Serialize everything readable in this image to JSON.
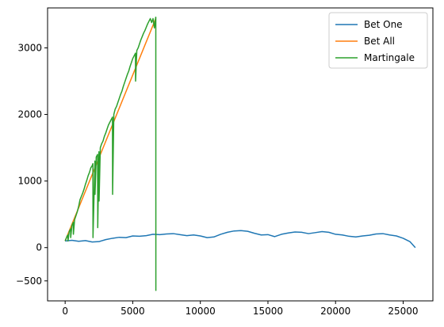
{
  "chart_data": {
    "type": "line",
    "title": "",
    "xlabel": "",
    "ylabel": "",
    "xlim": [
      -1300,
      27200
    ],
    "ylim": [
      -800,
      3600
    ],
    "xticks": [
      0,
      5000,
      10000,
      15000,
      20000,
      25000
    ],
    "yticks": [
      -500,
      0,
      1000,
      2000,
      3000
    ],
    "grid": false,
    "legend_position": "top-right",
    "series": [
      {
        "name": "Bet One",
        "color": "#1f77b4",
        "x": [
          0,
          500,
          1000,
          1500,
          2000,
          2500,
          3000,
          3500,
          4000,
          4500,
          5000,
          5500,
          6000,
          6500,
          7000,
          7500,
          8000,
          8500,
          9000,
          9500,
          10000,
          10500,
          11000,
          11500,
          12000,
          12500,
          13000,
          13500,
          14000,
          14500,
          15000,
          15500,
          16000,
          16500,
          17000,
          17500,
          18000,
          18500,
          19000,
          19500,
          20000,
          20500,
          21000,
          21500,
          22000,
          22500,
          23000,
          23500,
          24000,
          24500,
          25000,
          25500,
          25900
        ],
        "y": [
          100,
          110,
          95,
          105,
          85,
          90,
          120,
          140,
          155,
          150,
          175,
          170,
          180,
          200,
          195,
          205,
          210,
          195,
          180,
          190,
          175,
          150,
          160,
          200,
          230,
          250,
          255,
          245,
          215,
          190,
          195,
          165,
          200,
          220,
          235,
          230,
          210,
          225,
          240,
          230,
          200,
          190,
          170,
          160,
          175,
          185,
          205,
          210,
          190,
          175,
          140,
          90,
          0
        ]
      },
      {
        "name": "Bet All",
        "color": "#ff7f0e",
        "x": [
          0,
          6700
        ],
        "y": [
          100,
          3440
        ]
      },
      {
        "name": "Martingale",
        "color": "#2ca02c",
        "x": [
          0,
          150,
          200,
          210,
          300,
          400,
          410,
          500,
          600,
          610,
          700,
          800,
          900,
          1000,
          1100,
          1200,
          1300,
          1400,
          1500,
          1600,
          1700,
          1800,
          1900,
          2000,
          2050,
          2060,
          2200,
          2210,
          2300,
          2400,
          2410,
          2500,
          2510,
          2600,
          2700,
          2800,
          2900,
          3000,
          3100,
          3200,
          3300,
          3400,
          3500,
          3510,
          3600,
          3700,
          3800,
          3900,
          4000,
          4100,
          4200,
          4300,
          4400,
          4500,
          4600,
          4700,
          4800,
          4900,
          5000,
          5100,
          5200,
          5210,
          5300,
          5400,
          5500,
          5600,
          5700,
          5800,
          5900,
          6000,
          6100,
          6200,
          6300,
          6400,
          6500,
          6600,
          6700,
          6705,
          6710
        ],
        "y": [
          100,
          175,
          190,
          100,
          240,
          280,
          150,
          330,
          380,
          200,
          420,
          480,
          540,
          620,
          720,
          770,
          820,
          880,
          950,
          1010,
          1080,
          1130,
          1200,
          1230,
          1260,
          150,
          1300,
          800,
          1360,
          1400,
          300,
          1440,
          700,
          1500,
          1560,
          1600,
          1670,
          1720,
          1780,
          1840,
          1880,
          1920,
          1960,
          800,
          2000,
          2080,
          2120,
          2180,
          2240,
          2300,
          2350,
          2420,
          2480,
          2540,
          2600,
          2650,
          2720,
          2780,
          2840,
          2880,
          2920,
          2500,
          2960,
          3000,
          3060,
          3120,
          3170,
          3220,
          3260,
          3310,
          3360,
          3400,
          3440,
          3380,
          3440,
          3300,
          3460,
          3460,
          -650
        ]
      }
    ]
  }
}
